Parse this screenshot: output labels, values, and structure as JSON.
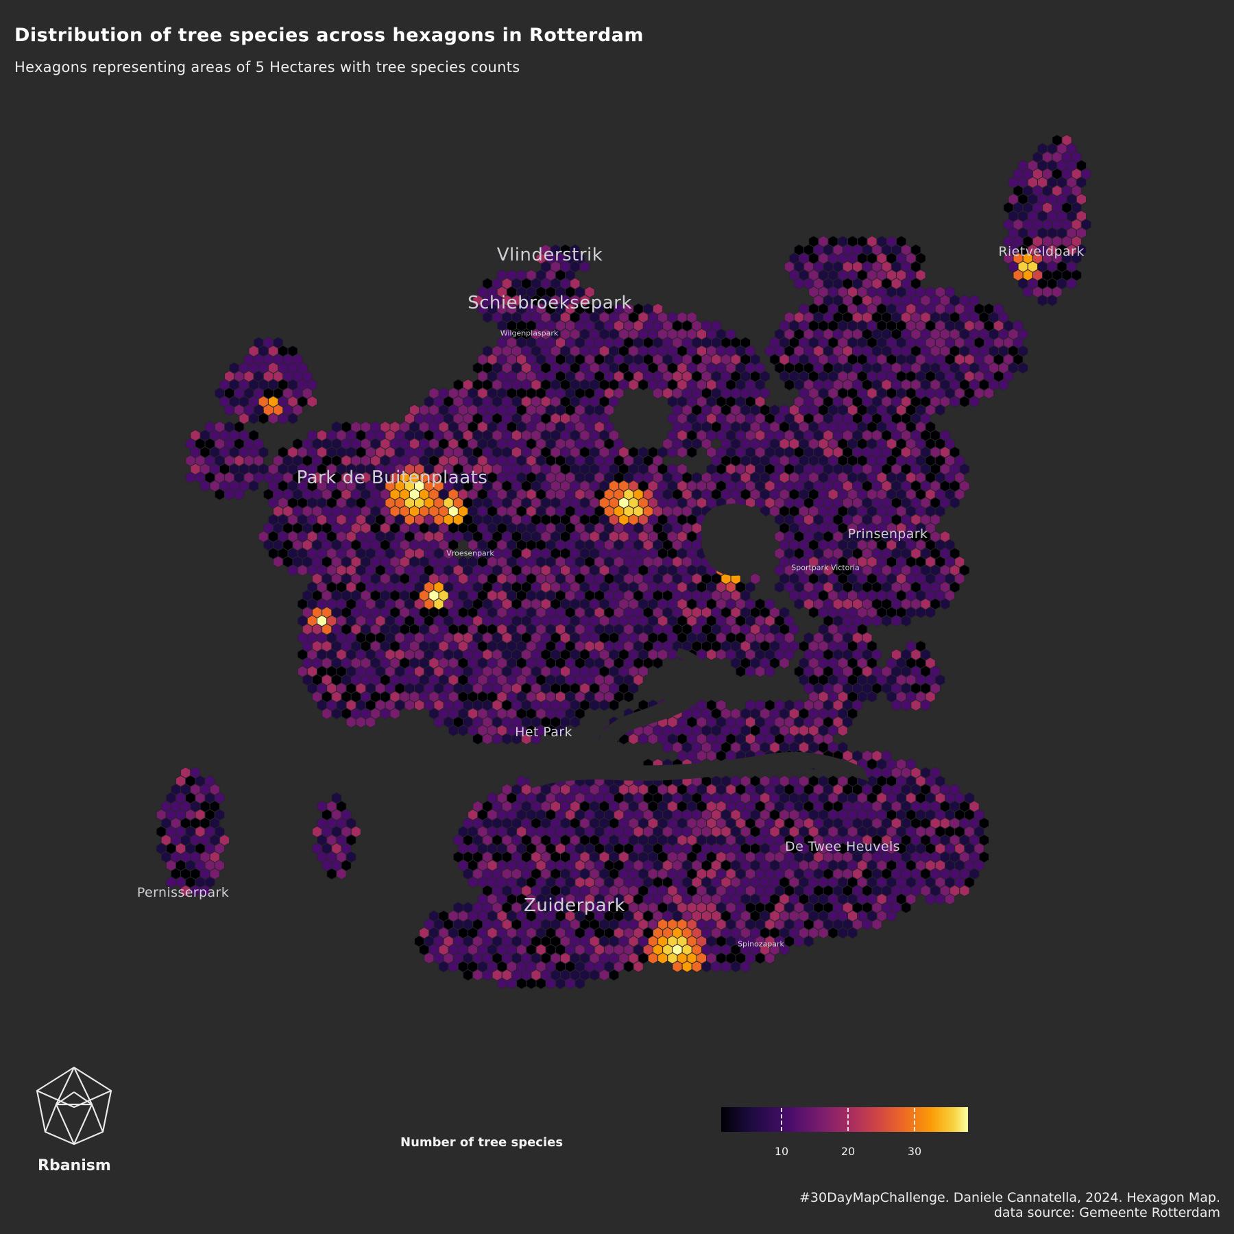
{
  "header": {
    "title": "Distribution of tree species across hexagons in Rotterdam",
    "subtitle": "Hexagons representing areas of 5 Hectares with tree species counts"
  },
  "parks": [
    {
      "name": "Vlinderstrik",
      "size": "large"
    },
    {
      "name": "Schiebroeksepark",
      "size": "large"
    },
    {
      "name": "Wilgenplaspark",
      "size": "small"
    },
    {
      "name": "Rietveldpark",
      "size": "medium"
    },
    {
      "name": "Park de Buitenplaats",
      "size": "large"
    },
    {
      "name": "Vroesenpark",
      "size": "small"
    },
    {
      "name": "Prinsenpark",
      "size": "medium"
    },
    {
      "name": "Sportpark Victoria",
      "size": "small"
    },
    {
      "name": "Het Park",
      "size": "medium"
    },
    {
      "name": "De Twee Heuvels",
      "size": "medium"
    },
    {
      "name": "Pernisserpark",
      "size": "medium"
    },
    {
      "name": "Zuiderpark",
      "size": "large"
    },
    {
      "name": "Spinozapark",
      "size": "small"
    }
  ],
  "legend": {
    "title": "Number of tree species",
    "ticks": [
      "10",
      "20",
      "30"
    ],
    "tick_values": [
      10,
      20,
      30
    ],
    "range": [
      1,
      38
    ],
    "colormap": "inferno",
    "colors": [
      "#000004",
      "#1c0b40",
      "#4a0c6b",
      "#781c6d",
      "#a52c60",
      "#cf4446",
      "#ed6925",
      "#fb9b06",
      "#f7d13d",
      "#fcffa4"
    ]
  },
  "branding": {
    "logo_text": "Rbanism"
  },
  "credits": {
    "line1": "#30DayMapChallenge. Daniele Cannatella, 2024. Hexagon Map.",
    "line2": "data source: Gemeente Rotterdam"
  },
  "colors": {
    "background": "#2b2b2b",
    "label": "#d0cfd6",
    "hex_outline": "#262626"
  }
}
